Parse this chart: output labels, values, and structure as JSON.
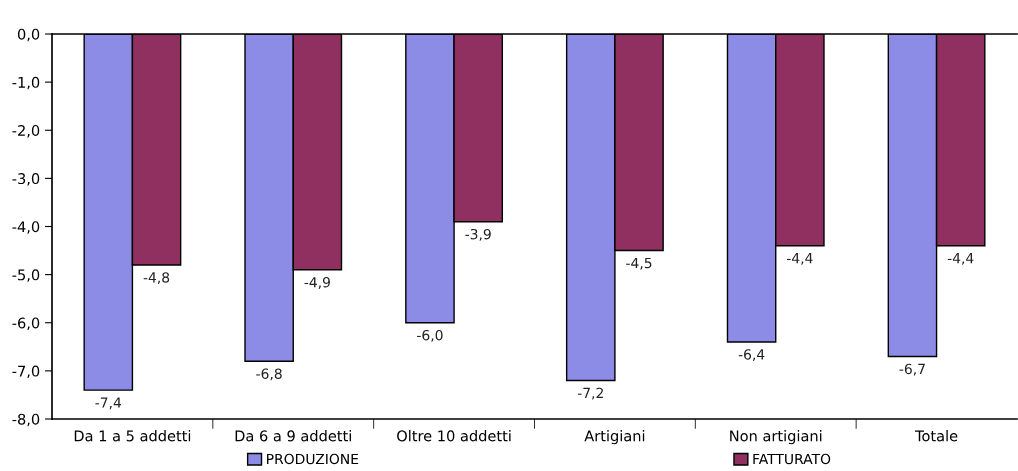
{
  "chart_data": {
    "type": "bar",
    "categories": [
      "Da 1 a 5 addetti",
      "Da 6 a 9 addetti",
      "Oltre 10 addetti",
      "Artigiani",
      "Non artigiani",
      "Totale"
    ],
    "series": [
      {
        "name": "PRODUZIONE",
        "color": "#8c8ce6",
        "values": [
          -7.4,
          -6.8,
          -6.0,
          -7.2,
          -6.4,
          -6.7
        ],
        "value_labels": [
          "-7,4",
          "-6,8",
          "-6,0",
          "-7,2",
          "-6,4",
          "-6,7"
        ]
      },
      {
        "name": "FATTURATO",
        "color": "#8f3060",
        "values": [
          -4.8,
          -4.9,
          -3.9,
          -4.5,
          -4.4,
          -4.4
        ],
        "value_labels": [
          "-4,8",
          "-4,9",
          "-3,9",
          "-4,5",
          "-4,4",
          "-4,4"
        ]
      }
    ],
    "ylim": [
      -8,
      0
    ],
    "yticks": [
      {
        "value": 0,
        "label": "0,0"
      },
      {
        "value": -1,
        "label": "-1,0"
      },
      {
        "value": -2,
        "label": "-2,0"
      },
      {
        "value": -3,
        "label": "-3,0"
      },
      {
        "value": -4,
        "label": "-4,0"
      },
      {
        "value": -5,
        "label": "-5,0"
      },
      {
        "value": -6,
        "label": "-6,0"
      },
      {
        "value": -7,
        "label": "-7,0"
      },
      {
        "value": -8,
        "label": "-8,0"
      }
    ],
    "legend": "bottom"
  }
}
